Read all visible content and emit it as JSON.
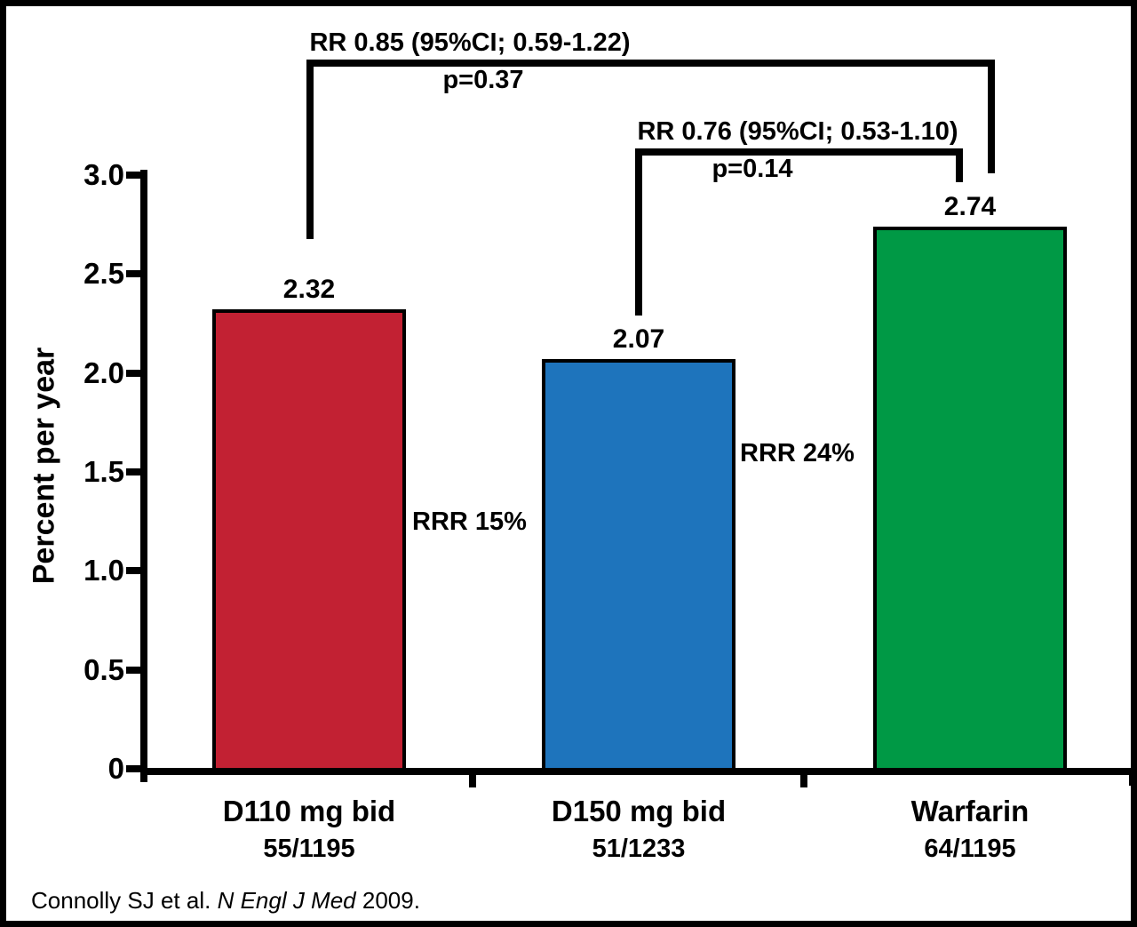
{
  "chart_data": {
    "type": "bar",
    "title": "",
    "ylabel": "Percent per year",
    "xlabel": "",
    "ylim": [
      0,
      3.0
    ],
    "ytick_values": [
      3.0,
      2.5,
      2.0,
      1.5,
      1.0,
      0.5,
      0
    ],
    "ytick_labels": [
      "3.0",
      "2.5",
      "2.0",
      "1.5",
      "1.0",
      "0.5",
      "0"
    ],
    "grid": "off",
    "legend": "none",
    "categories": [
      "D110 mg bid",
      "D150 mg bid",
      "Warfarin"
    ],
    "counts": [
      "55/1195",
      "51/1233",
      "64/1195"
    ],
    "values": [
      2.32,
      2.07,
      2.74
    ],
    "value_labels": [
      "2.32",
      "2.07",
      "2.74"
    ],
    "bar_colors": [
      "#c22133",
      "#1e74bc",
      "#009945"
    ],
    "rrr_annotations": [
      "RRR 15%",
      "RRR 24%"
    ],
    "comparisons": [
      {
        "label": "RR 0.85 (95%CI; 0.59-1.22)",
        "p_value": "p=0.37",
        "between": [
          "D110 mg bid",
          "Warfarin"
        ]
      },
      {
        "label": "RR 0.76 (95%CI; 0.53-1.10)",
        "p_value": "p=0.14",
        "between": [
          "D150 mg bid",
          "Warfarin"
        ]
      }
    ]
  },
  "citation": {
    "prefix": "Connolly SJ et al. ",
    "journal": "N Engl J Med",
    "suffix": " 2009."
  }
}
